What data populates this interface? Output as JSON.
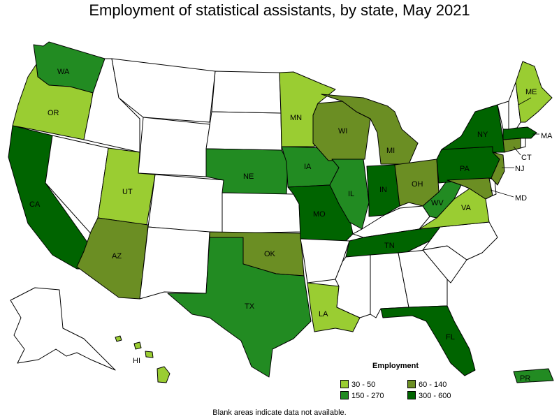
{
  "title": "Employment of statistical assistants, by state, May 2021",
  "legend": {
    "title": "Employment",
    "items": [
      {
        "label": "30 - 50",
        "color": "#9acd32"
      },
      {
        "label": "60 - 140",
        "color": "#6b8e23"
      },
      {
        "label": "150 - 270",
        "color": "#228b22"
      },
      {
        "label": "300 - 600",
        "color": "#006400"
      }
    ]
  },
  "footnote": "Blank areas indicate data not available.",
  "blank_color": "#ffffff",
  "states": [
    {
      "abbr": "WA",
      "range": "150 - 270"
    },
    {
      "abbr": "OR",
      "range": "30 - 50"
    },
    {
      "abbr": "CA",
      "range": "300 - 600"
    },
    {
      "abbr": "UT",
      "range": "30 - 50"
    },
    {
      "abbr": "AZ",
      "range": "60 - 140"
    },
    {
      "abbr": "NE",
      "range": "150 - 270"
    },
    {
      "abbr": "TX",
      "range": "150 - 270"
    },
    {
      "abbr": "OK",
      "range": "60 - 140"
    },
    {
      "abbr": "MN",
      "range": "30 - 50"
    },
    {
      "abbr": "IA",
      "range": "150 - 270"
    },
    {
      "abbr": "MO",
      "range": "300 - 600"
    },
    {
      "abbr": "LA",
      "range": "30 - 50"
    },
    {
      "abbr": "WI",
      "range": "60 - 140"
    },
    {
      "abbr": "IL",
      "range": "150 - 270"
    },
    {
      "abbr": "MI",
      "range": "60 - 140"
    },
    {
      "abbr": "IN",
      "range": "300 - 600"
    },
    {
      "abbr": "OH",
      "range": "60 - 140"
    },
    {
      "abbr": "TN",
      "range": "300 - 600"
    },
    {
      "abbr": "WV",
      "range": "150 - 270"
    },
    {
      "abbr": "VA",
      "range": "30 - 50"
    },
    {
      "abbr": "PA",
      "range": "300 - 600"
    },
    {
      "abbr": "NY",
      "range": "300 - 600"
    },
    {
      "abbr": "ME",
      "range": "30 - 50"
    },
    {
      "abbr": "MA",
      "range": "300 - 600"
    },
    {
      "abbr": "CT",
      "range": "60 - 140"
    },
    {
      "abbr": "NJ",
      "range": "60 - 140"
    },
    {
      "abbr": "MD",
      "range": "60 - 140"
    },
    {
      "abbr": "FL",
      "range": "300 - 600"
    },
    {
      "abbr": "HI",
      "range": "30 - 50"
    },
    {
      "abbr": "PR",
      "range": "150 - 270"
    },
    {
      "abbr": "ID",
      "range": ""
    },
    {
      "abbr": "MT",
      "range": ""
    },
    {
      "abbr": "WY",
      "range": ""
    },
    {
      "abbr": "NV",
      "range": ""
    },
    {
      "abbr": "CO",
      "range": ""
    },
    {
      "abbr": "NM",
      "range": ""
    },
    {
      "abbr": "ND",
      "range": ""
    },
    {
      "abbr": "SD",
      "range": ""
    },
    {
      "abbr": "KS",
      "range": ""
    },
    {
      "abbr": "AR",
      "range": ""
    },
    {
      "abbr": "MS",
      "range": ""
    },
    {
      "abbr": "AL",
      "range": ""
    },
    {
      "abbr": "GA",
      "range": ""
    },
    {
      "abbr": "SC",
      "range": ""
    },
    {
      "abbr": "NC",
      "range": ""
    },
    {
      "abbr": "KY",
      "range": ""
    },
    {
      "abbr": "VT",
      "range": ""
    },
    {
      "abbr": "NH",
      "range": ""
    },
    {
      "abbr": "RI",
      "range": ""
    },
    {
      "abbr": "DE",
      "range": ""
    },
    {
      "abbr": "AK",
      "range": ""
    }
  ]
}
